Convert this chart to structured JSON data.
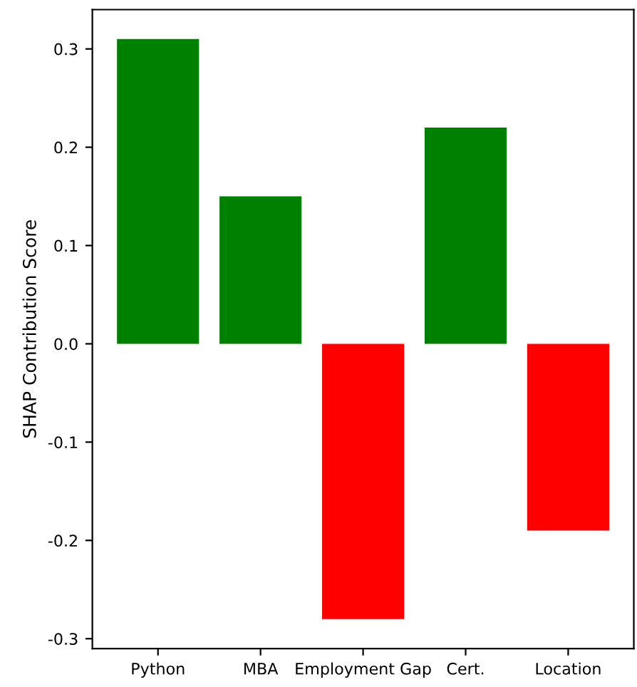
{
  "chart_data": {
    "type": "bar",
    "ylabel": "SHAP Contribution Score",
    "categories": [
      "Python",
      "MBA",
      "Employment Gap",
      "Cert.",
      "Location"
    ],
    "values": [
      0.31,
      0.15,
      -0.28,
      0.22,
      -0.19
    ],
    "colors": [
      "#008000",
      "#008000",
      "#ff0000",
      "#008000",
      "#ff0000"
    ],
    "ylim": [
      -0.31,
      0.34
    ],
    "yticks": [
      {
        "value": -0.3,
        "label": "-0.3"
      },
      {
        "value": -0.2,
        "label": "-0.2"
      },
      {
        "value": -0.1,
        "label": "-0.1"
      },
      {
        "value": 0,
        "label": "0.0"
      },
      {
        "value": 0.1,
        "label": "0.1"
      },
      {
        "value": 0.2,
        "label": "0.2"
      },
      {
        "value": 0.3,
        "label": "0.3"
      }
    ],
    "grid": false
  }
}
